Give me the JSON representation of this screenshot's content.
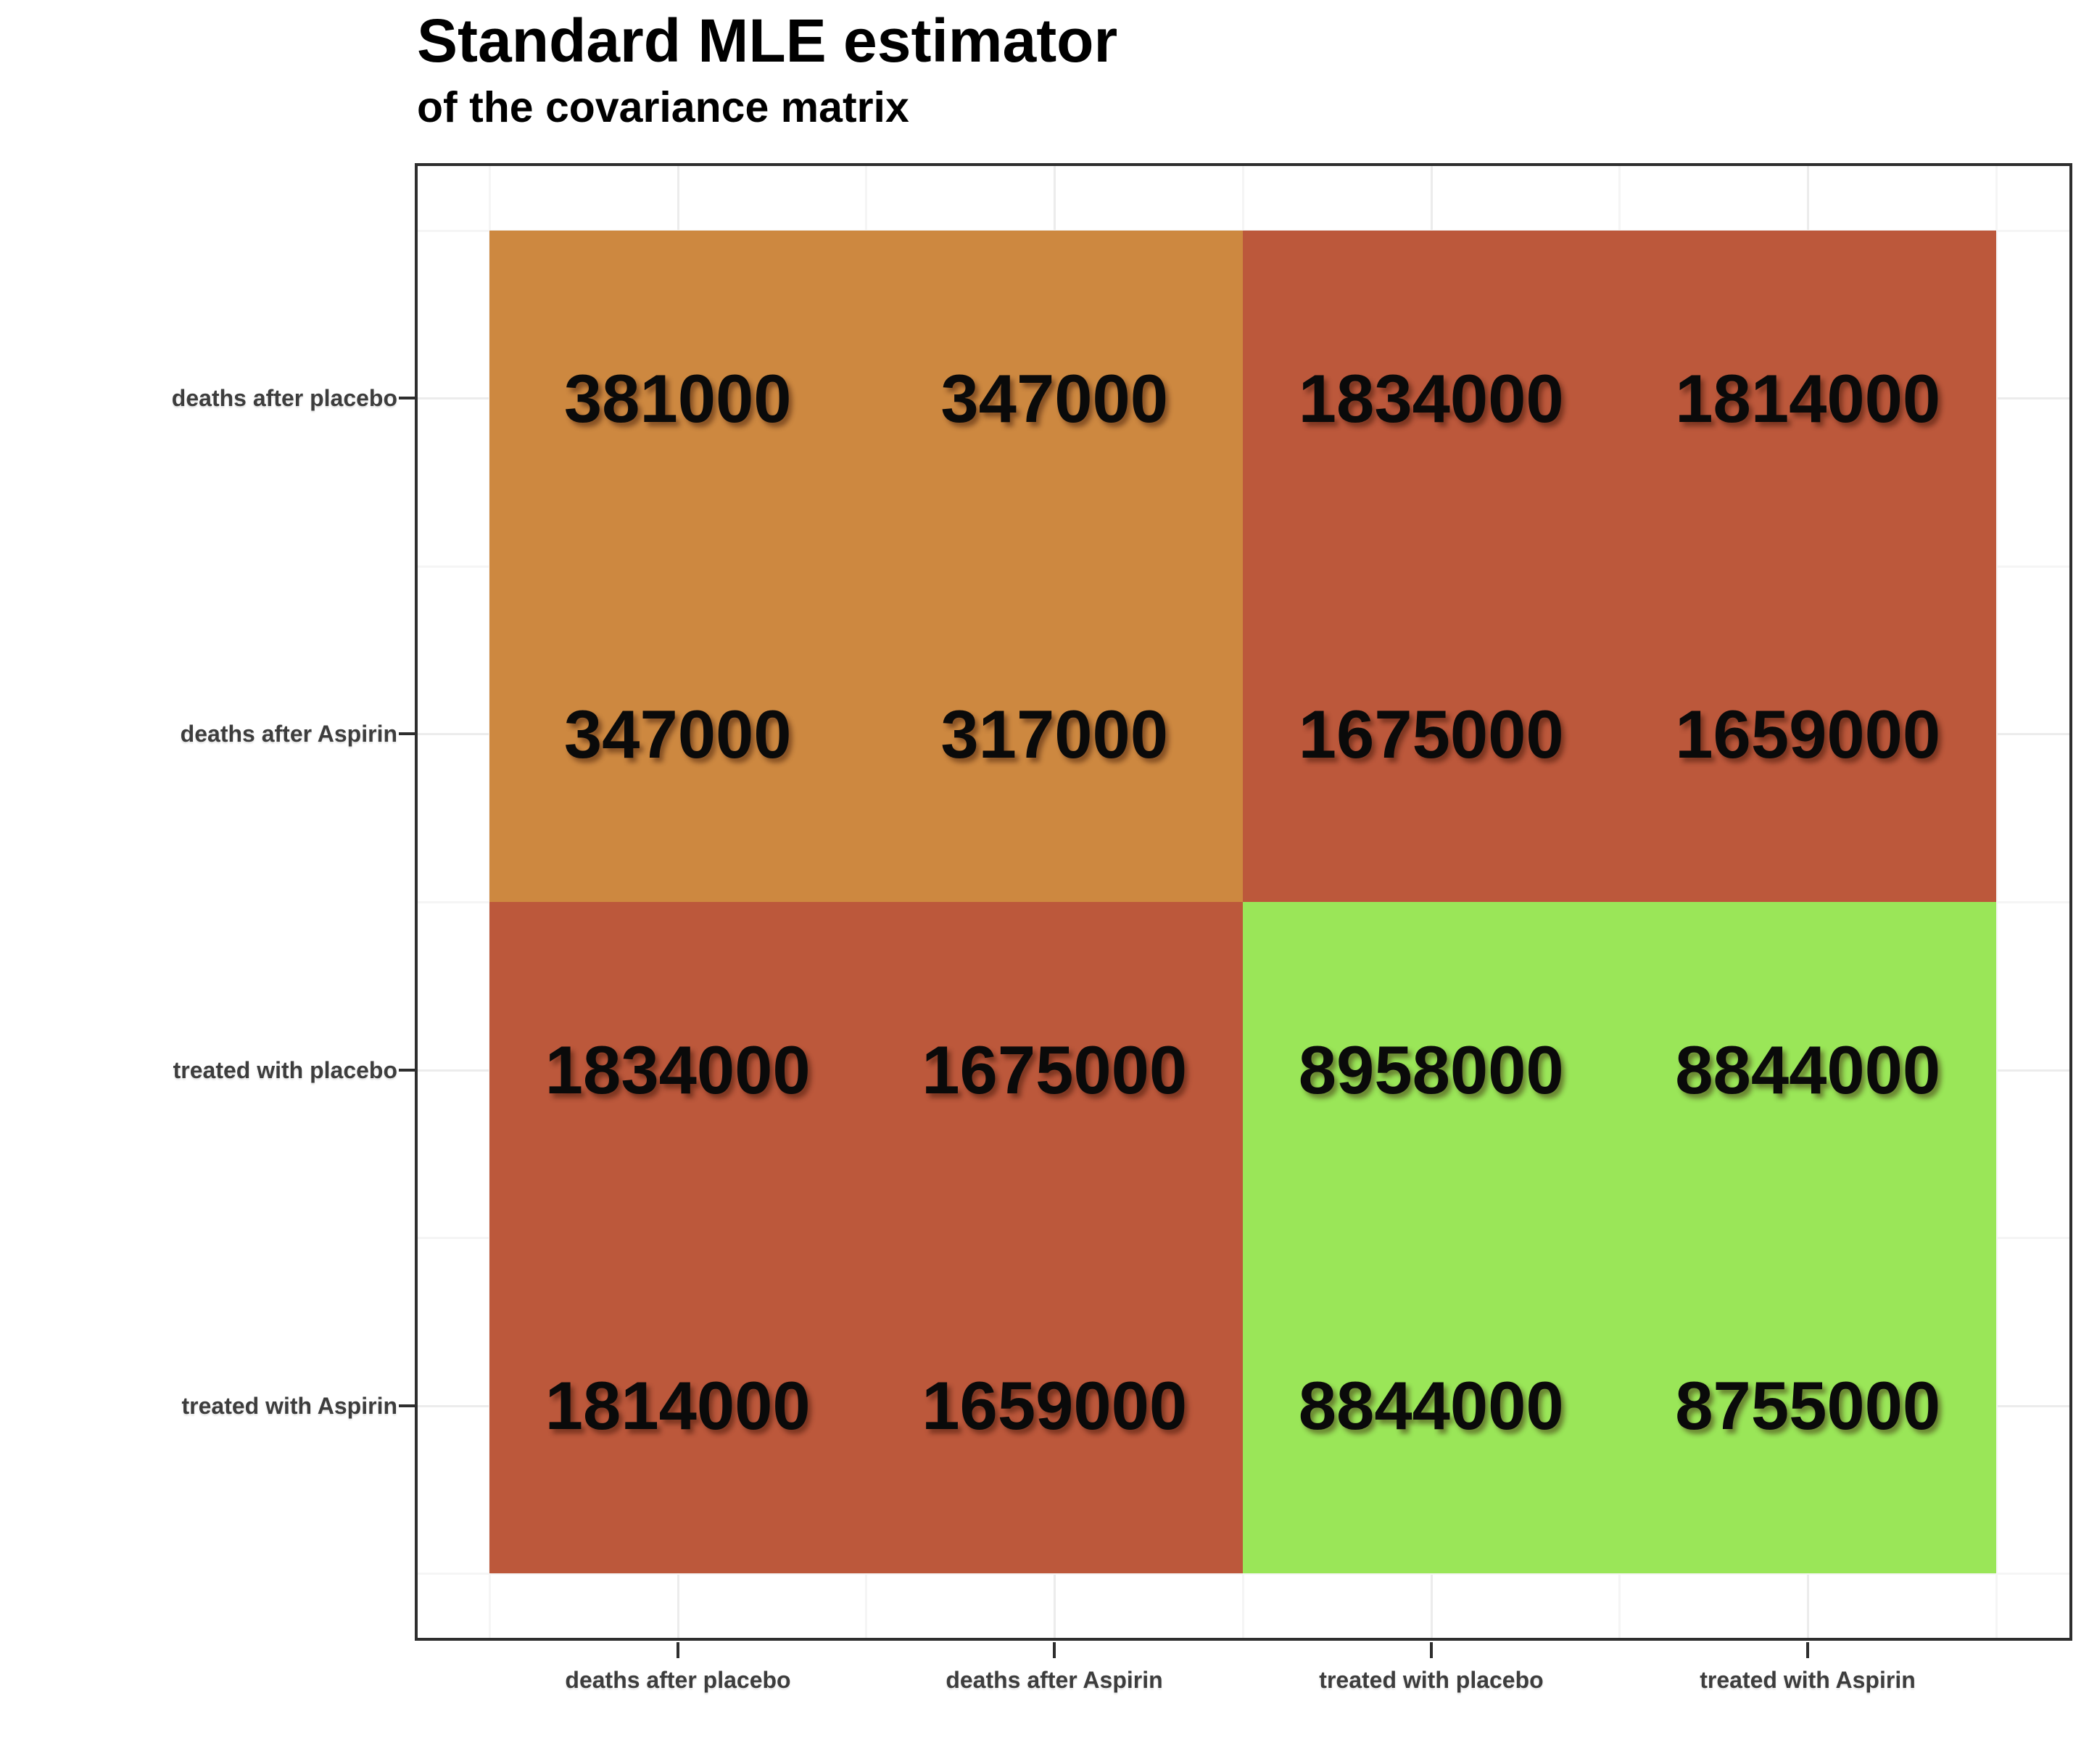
{
  "title": "Standard MLE estimator",
  "subtitle": "of the covariance matrix",
  "chart_data": {
    "type": "heatmap",
    "title": "Standard MLE estimator",
    "subtitle": "of the covariance matrix",
    "x_categories": [
      "deaths after placebo",
      "deaths after Aspirin",
      "treated with placebo",
      "treated with Aspirin"
    ],
    "y_categories": [
      "deaths after placebo",
      "deaths after Aspirin",
      "treated with placebo",
      "treated with Aspirin"
    ],
    "values": [
      [
        381000,
        347000,
        1834000,
        1814000
      ],
      [
        347000,
        317000,
        1675000,
        1659000
      ],
      [
        1834000,
        1675000,
        8958000,
        8844000
      ],
      [
        1814000,
        1659000,
        8844000,
        8755000
      ]
    ],
    "cell_colors": [
      [
        "#CD8840",
        "#CD8840",
        "#BC583B",
        "#BC583B"
      ],
      [
        "#CD8840",
        "#CD8840",
        "#BC583B",
        "#BC583B"
      ],
      [
        "#BC583B",
        "#BC583B",
        "#9AE658",
        "#9AE658"
      ],
      [
        "#BC583B",
        "#BC583B",
        "#9AE658",
        "#9AE658"
      ]
    ],
    "value_label_color": "#0a0a0a",
    "legend": "none",
    "grid": true
  },
  "colors": {
    "background": "#ffffff",
    "panel_border": "#2e2e2e",
    "axis_label": "#3d3d3d",
    "gridline_major": "#ececec",
    "gridline_minor": "#f5f5f5",
    "title_color": "#000000",
    "tile_orange": "#CD8840",
    "tile_red": "#BC583B",
    "tile_green": "#9AE658"
  }
}
